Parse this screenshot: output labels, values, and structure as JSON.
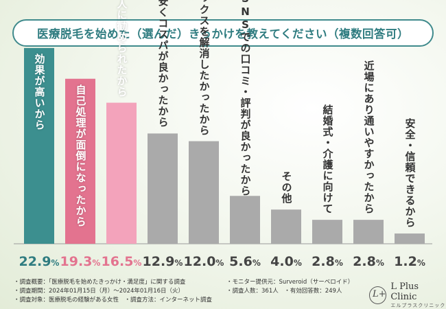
{
  "title": "医療脱毛を始めた（選んだ）きっかけを教えてください（複数回答可）",
  "colors": {
    "teal": "#3c8f8f",
    "pink": "#e3738f",
    "lightpink": "#f3a3bb",
    "gray": "#aaaaaa",
    "accent": "#2f7c80"
  },
  "chart_data": {
    "type": "bar",
    "categories": [
      "効果が高いから",
      "自己処理が面倒になったから",
      "友人・知人に勧められたから",
      "値段が安くコスパが良かったから",
      "ムダ毛のコンプレックスを解消したかったから",
      "SNSでの口コミ・評判が良かったから",
      "その他",
      "結婚式・介護に向けて",
      "近場にあり通いやすかったから",
      "安全・信頼できるから"
    ],
    "values": [
      22.9,
      19.3,
      16.5,
      12.9,
      12.0,
      5.6,
      4.0,
      2.8,
      2.8,
      1.2
    ],
    "unit": "%",
    "ylim": [
      0,
      24
    ]
  },
  "footer": {
    "left": [
      "・調査概要：「医療脱毛を始めたきっかけ・満足度」に関する調査",
      "・調査期間：2024年01月15日（月）～2024年01月16日（火）",
      "・調査対象：医療脱毛の経験がある女性　・調査方法：インターネット調査"
    ],
    "right": [
      "・モニター提供元：Surveroid（サーベロイド）",
      "・調査人数：361人　・有効回答数：249人"
    ]
  },
  "logo": {
    "mark": "L+",
    "name": "L Plus Clinic",
    "sub": "エルプラスクリニック"
  }
}
